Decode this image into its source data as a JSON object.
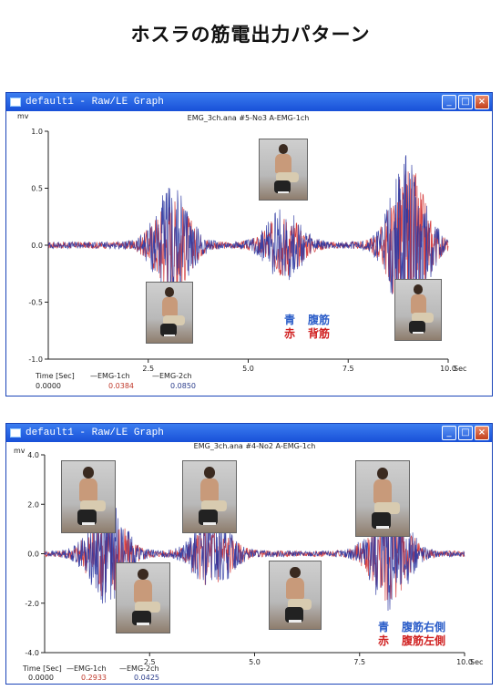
{
  "page": {
    "title": "ホスラの筋電出力パターン"
  },
  "chart_data": [
    {
      "type": "line",
      "window_title": "default1 - Raw/LE Graph",
      "subtitle": "EMG_3ch.ana #5-No3 A-EMG-1ch",
      "ylabel": "mv",
      "xlabel": "Sec",
      "xlim": [
        0,
        10
      ],
      "ylim": [
        -1.0,
        1.0
      ],
      "yticks": [
        "1.0",
        "0.5",
        "0.0",
        "-0.5",
        "-1.0"
      ],
      "xticks": [
        "2.5",
        "5.0",
        "7.5",
        "10.0"
      ],
      "series": [
        {
          "name": "EMG-1ch",
          "color": "#d02020"
        },
        {
          "name": "EMG-2ch",
          "color": "#2a35a0"
        }
      ],
      "bursts": [
        {
          "x": 3.1,
          "amp": 0.5
        },
        {
          "x": 5.9,
          "amp": 0.3
        },
        {
          "x": 9.0,
          "amp": 0.8
        }
      ],
      "footer": {
        "time_label": "Time [Sec]",
        "time_value": "0.0000",
        "ch1_label": "—EMG-1ch",
        "ch1_value": "0.0384",
        "ch2_label": "—EMG-2ch",
        "ch2_value": "0.0850"
      },
      "legend": [
        {
          "color_word": "青",
          "muscle": "腹筋",
          "color": "#2a5cc8"
        },
        {
          "color_word": "赤",
          "muscle": "背筋",
          "color": "#d02020"
        }
      ]
    },
    {
      "type": "line",
      "window_title": "default1 - Raw/LE Graph",
      "subtitle": "EMG_3ch.ana #4-No2 A-EMG-1ch",
      "ylabel": "mv",
      "xlabel": "Sec",
      "xlim": [
        0,
        10
      ],
      "ylim": [
        -4.0,
        4.0
      ],
      "yticks": [
        "4.0",
        "2.0",
        "0.0",
        "-2.0",
        "-4.0"
      ],
      "xticks": [
        "2.5",
        "5.0",
        "7.5",
        "10.0"
      ],
      "series": [
        {
          "name": "EMG-1ch",
          "color": "#d02020"
        },
        {
          "name": "EMG-2ch",
          "color": "#2a35a0"
        }
      ],
      "bursts": [
        {
          "x": 1.5,
          "amp": 2.0
        },
        {
          "x": 4.0,
          "amp": 1.5
        },
        {
          "x": 8.2,
          "amp": 2.2
        }
      ],
      "footer": {
        "time_label": "Time [Sec]",
        "time_value": "0.0000",
        "ch1_label": "—EMG-1ch",
        "ch1_value": "0.2933",
        "ch2_label": "—EMG-2ch",
        "ch2_value": "0.0425"
      },
      "legend": [
        {
          "color_word": "青",
          "muscle": "腹筋右側",
          "color": "#2a5cc8"
        },
        {
          "color_word": "赤",
          "muscle": "腹筋左側",
          "color": "#d02020"
        }
      ]
    }
  ]
}
